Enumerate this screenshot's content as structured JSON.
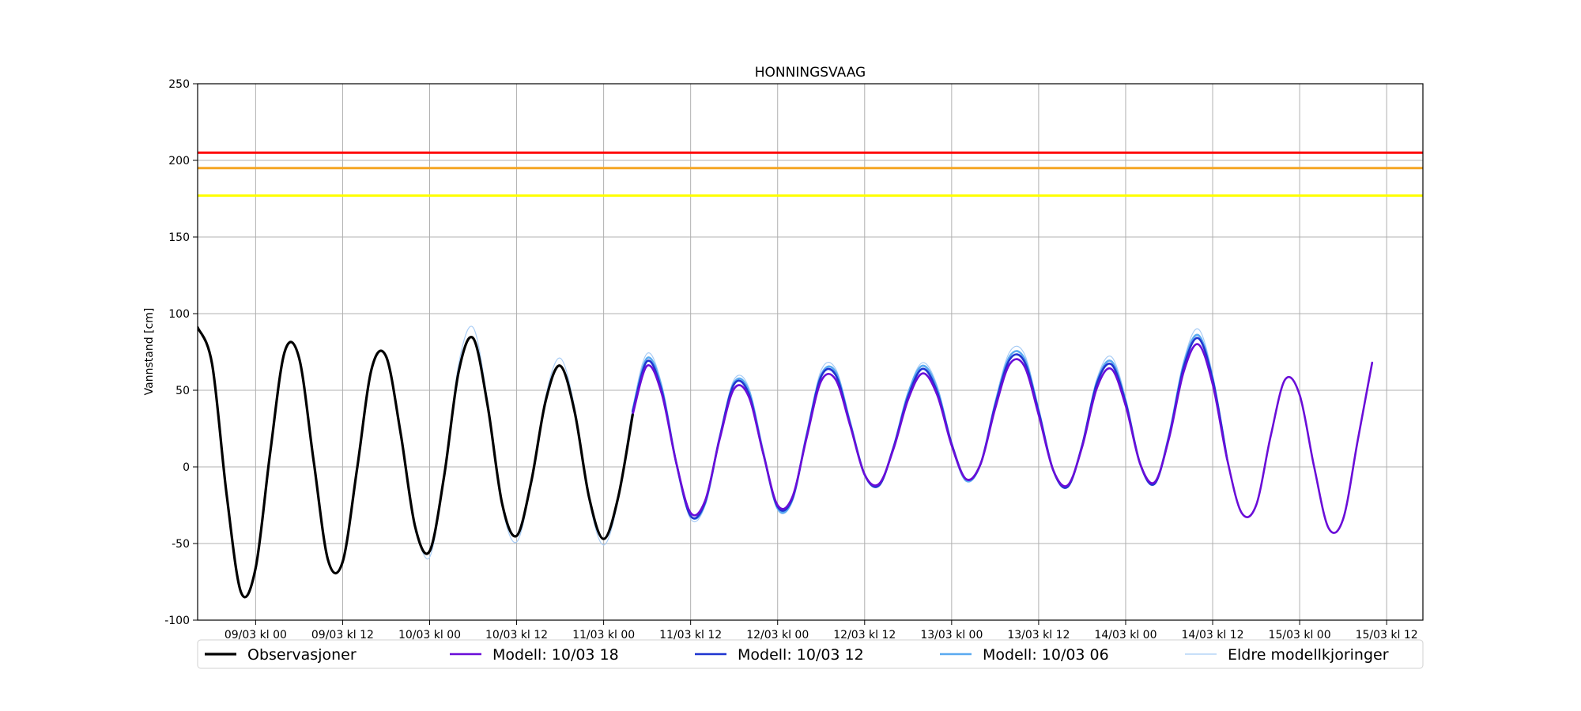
{
  "chart_data": {
    "type": "line",
    "title": "HONNINGSVAAG",
    "ylabel": "Vannstand [cm]",
    "ylim": [
      -100,
      250
    ],
    "yticks": [
      -100,
      -50,
      0,
      50,
      100,
      150,
      200,
      250
    ],
    "xlim": [
      "08/03 kl 16",
      "15/03 kl 17"
    ],
    "xticks": [
      "09/03 kl 00",
      "09/03 kl 12",
      "10/03 kl 00",
      "10/03 kl 12",
      "11/03 kl 00",
      "11/03 kl 12",
      "12/03 kl 00",
      "12/03 kl 12",
      "13/03 kl 00",
      "13/03 kl 12",
      "14/03 kl 00",
      "14/03 kl 12",
      "15/03 kl 00",
      "15/03 kl 12"
    ],
    "grid": true,
    "legend": "below",
    "thresholds": [
      {
        "value": 205,
        "color": "#ff0000"
      },
      {
        "value": 195,
        "color": "#f5a623"
      },
      {
        "value": 177,
        "color": "#ffff00"
      }
    ],
    "x": [
      "08/03 kl 16",
      "08/03 kl 18",
      "08/03 kl 20",
      "08/03 kl 22",
      "09/03 kl 00",
      "09/03 kl 02",
      "09/03 kl 04",
      "09/03 kl 06",
      "09/03 kl 08",
      "09/03 kl 10",
      "09/03 kl 12",
      "09/03 kl 14",
      "09/03 kl 16",
      "09/03 kl 18",
      "09/03 kl 20",
      "09/03 kl 22",
      "10/03 kl 00",
      "10/03 kl 02",
      "10/03 kl 04",
      "10/03 kl 06",
      "10/03 kl 08",
      "10/03 kl 10",
      "10/03 kl 12",
      "10/03 kl 14",
      "10/03 kl 16",
      "10/03 kl 18",
      "10/03 kl 20",
      "10/03 kl 22",
      "11/03 kl 00",
      "11/03 kl 02",
      "11/03 kl 04",
      "11/03 kl 06",
      "11/03 kl 08",
      "11/03 kl 10",
      "11/03 kl 12",
      "11/03 kl 14",
      "11/03 kl 16",
      "11/03 kl 18",
      "11/03 kl 20",
      "11/03 kl 22",
      "12/03 kl 00",
      "12/03 kl 02",
      "12/03 kl 04",
      "12/03 kl 06",
      "12/03 kl 08",
      "12/03 kl 10",
      "12/03 kl 12",
      "12/03 kl 14",
      "12/03 kl 16",
      "12/03 kl 18",
      "12/03 kl 20",
      "12/03 kl 22",
      "13/03 kl 00",
      "13/03 kl 02",
      "13/03 kl 04",
      "13/03 kl 06",
      "13/03 kl 08",
      "13/03 kl 10",
      "13/03 kl 12",
      "13/03 kl 14",
      "13/03 kl 16",
      "13/03 kl 18",
      "13/03 kl 20",
      "13/03 kl 22",
      "14/03 kl 00",
      "14/03 kl 02",
      "14/03 kl 04",
      "14/03 kl 06",
      "14/03 kl 08",
      "14/03 kl 10",
      "14/03 kl 12",
      "14/03 kl 14",
      "14/03 kl 16",
      "14/03 kl 18",
      "14/03 kl 20",
      "14/03 kl 22",
      "15/03 kl 00",
      "15/03 kl 02",
      "15/03 kl 04",
      "15/03 kl 06",
      "15/03 kl 08",
      "15/03 kl 10"
    ],
    "series": [
      {
        "name": "Observasjoner",
        "color": "#000000",
        "width": 3.2,
        "values": [
          91,
          67,
          -18,
          -82,
          -66,
          9,
          75,
          71,
          4,
          -61,
          -62,
          -1,
          64,
          72,
          22,
          -39,
          -55,
          -6,
          62,
          84,
          40,
          -24,
          -45,
          -10,
          43,
          66,
          36,
          -20,
          -47,
          -20,
          34,
          null,
          null,
          null,
          null,
          null,
          null,
          null,
          null,
          null,
          null,
          null,
          null,
          null,
          null,
          null,
          null,
          null,
          null,
          null,
          null,
          null,
          null,
          null,
          null,
          null,
          null,
          null,
          null,
          null,
          null,
          null,
          null,
          null,
          null,
          null,
          null,
          null,
          null,
          null,
          null,
          null,
          null,
          null,
          null,
          null,
          null,
          null,
          null,
          null,
          null,
          null
        ]
      },
      {
        "name": "Modell: 10/03 18",
        "color": "#6a0dd8",
        "width": 2.6,
        "values": [
          null,
          null,
          null,
          null,
          null,
          null,
          null,
          null,
          null,
          null,
          null,
          null,
          null,
          null,
          null,
          null,
          null,
          null,
          null,
          null,
          null,
          null,
          null,
          null,
          null,
          null,
          null,
          null,
          null,
          null,
          34,
          66,
          48,
          3,
          -30,
          -22,
          18,
          51,
          46,
          9,
          -25,
          -20,
          19,
          56,
          57,
          27,
          -5,
          -11,
          12,
          44,
          61,
          47,
          14,
          -8,
          2,
          38,
          67,
          66,
          34,
          -2,
          -12,
          13,
          51,
          64,
          40,
          2,
          -10,
          19,
          62,
          80,
          54,
          5,
          -30,
          -25,
          20,
          57,
          47,
          0,
          -40,
          -34,
          17,
          68
        ]
      },
      {
        "name": "Modell: 10/03 12",
        "color": "#1f35d0",
        "width": 2.6,
        "values": [
          null,
          null,
          null,
          null,
          null,
          null,
          null,
          null,
          null,
          null,
          null,
          null,
          null,
          null,
          null,
          null,
          null,
          null,
          null,
          null,
          null,
          null,
          null,
          null,
          null,
          null,
          null,
          null,
          null,
          null,
          36,
          69,
          50,
          3,
          -32,
          -23,
          19,
          54,
          48,
          9,
          -26,
          -21,
          20,
          59,
          60,
          28,
          -5,
          -12,
          13,
          46,
          64,
          49,
          15,
          -8,
          2,
          40,
          70,
          69,
          36,
          -2,
          -13,
          14,
          54,
          67,
          42,
          2,
          -11,
          20,
          65,
          84,
          57,
          5,
          null,
          null,
          null,
          null,
          null,
          null,
          null,
          null,
          null,
          null
        ]
      },
      {
        "name": "Modell: 10/03 06",
        "color": "#5aaaf0",
        "width": 2.6,
        "values": [
          null,
          null,
          null,
          null,
          null,
          null,
          null,
          null,
          null,
          null,
          null,
          null,
          null,
          null,
          null,
          null,
          null,
          null,
          null,
          null,
          null,
          null,
          null,
          null,
          null,
          null,
          null,
          null,
          null,
          null,
          37,
          71,
          52,
          3,
          -32,
          -24,
          19,
          55,
          50,
          10,
          -27,
          -22,
          21,
          60,
          62,
          29,
          -5,
          -12,
          13,
          48,
          66,
          51,
          15,
          -9,
          2,
          41,
          72,
          71,
          37,
          -2,
          -13,
          14,
          55,
          69,
          43,
          2,
          -11,
          21,
          67,
          86,
          58,
          5,
          null,
          null,
          null,
          null,
          null,
          null,
          null,
          null,
          null,
          null
        ]
      },
      {
        "name": "Eldre modellkjoringer",
        "color": "#a8ccf5",
        "width": 1.2,
        "values": [
          null,
          null,
          null,
          null,
          null,
          null,
          null,
          null,
          null,
          null,
          null,
          null,
          null,
          null,
          null,
          -42,
          -59,
          -6,
          67,
          91,
          43,
          -26,
          -49,
          -11,
          46,
          71,
          39,
          -22,
          -51,
          -22,
          38,
          74,
          54,
          3,
          -34,
          -25,
          20,
          57,
          52,
          10,
          -28,
          -22,
          21,
          63,
          64,
          30,
          -6,
          -12,
          13,
          49,
          68,
          53,
          16,
          -9,
          2,
          43,
          75,
          74,
          38,
          -2,
          -13,
          15,
          57,
          72,
          45,
          2,
          -11,
          21,
          69,
          90,
          60,
          6,
          null,
          null,
          null,
          null,
          null,
          null,
          null,
          null,
          null,
          null
        ]
      }
    ]
  }
}
